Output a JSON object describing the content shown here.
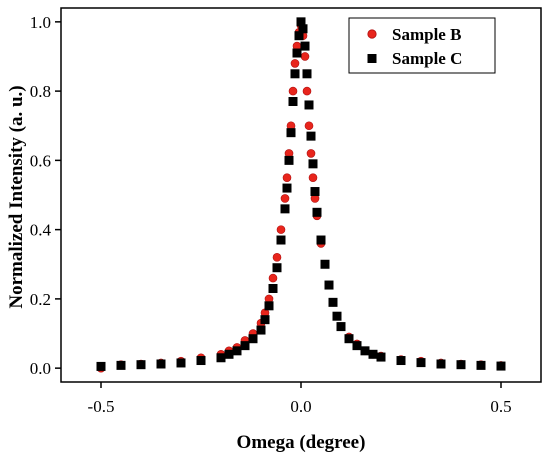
{
  "chart_data": {
    "type": "scatter",
    "xlabel": "Omega (degree)",
    "ylabel": "Normalized Intensity (a. u.)",
    "xlim": [
      -0.6,
      0.6
    ],
    "ylim": [
      -0.04,
      1.04
    ],
    "xticks": [
      "-0.5",
      "0.0",
      "0.5"
    ],
    "xtick_values": [
      -0.5,
      0.0,
      0.5
    ],
    "yticks": [
      "0.0",
      "0.2",
      "0.4",
      "0.6",
      "0.8",
      "1.0"
    ],
    "ytick_values": [
      0.0,
      0.2,
      0.4,
      0.6,
      0.8,
      1.0
    ],
    "legend_position": "top-right",
    "series": [
      {
        "name": "Sample B",
        "marker": "circle",
        "color": "#e8251c",
        "x": [
          -0.5,
          -0.45,
          -0.4,
          -0.35,
          -0.3,
          -0.25,
          -0.2,
          -0.18,
          -0.16,
          -0.14,
          -0.12,
          -0.1,
          -0.09,
          -0.08,
          -0.07,
          -0.06,
          -0.05,
          -0.04,
          -0.035,
          -0.03,
          -0.025,
          -0.02,
          -0.015,
          -0.01,
          -0.005,
          0.0,
          0.005,
          0.01,
          0.015,
          0.02,
          0.025,
          0.03,
          0.035,
          0.04,
          0.05,
          0.06,
          0.07,
          0.08,
          0.09,
          0.1,
          0.12,
          0.14,
          0.16,
          0.18,
          0.2,
          0.25,
          0.3,
          0.35,
          0.4,
          0.45,
          0.5
        ],
        "y": [
          0.0,
          0.01,
          0.012,
          0.015,
          0.02,
          0.03,
          0.04,
          0.05,
          0.06,
          0.08,
          0.1,
          0.13,
          0.16,
          0.2,
          0.26,
          0.32,
          0.4,
          0.49,
          0.55,
          0.62,
          0.7,
          0.8,
          0.88,
          0.93,
          0.97,
          0.99,
          0.96,
          0.9,
          0.8,
          0.7,
          0.62,
          0.55,
          0.49,
          0.44,
          0.36,
          0.3,
          0.24,
          0.19,
          0.15,
          0.12,
          0.09,
          0.07,
          0.05,
          0.04,
          0.035,
          0.025,
          0.02,
          0.015,
          0.012,
          0.01,
          0.008
        ]
      },
      {
        "name": "Sample C",
        "marker": "square",
        "color": "#000000",
        "x": [
          -0.5,
          -0.45,
          -0.4,
          -0.35,
          -0.3,
          -0.25,
          -0.2,
          -0.18,
          -0.16,
          -0.14,
          -0.12,
          -0.1,
          -0.09,
          -0.08,
          -0.07,
          -0.06,
          -0.05,
          -0.04,
          -0.035,
          -0.03,
          -0.025,
          -0.02,
          -0.015,
          -0.01,
          -0.005,
          0.0,
          0.005,
          0.01,
          0.015,
          0.02,
          0.025,
          0.03,
          0.035,
          0.04,
          0.05,
          0.06,
          0.07,
          0.08,
          0.09,
          0.1,
          0.12,
          0.14,
          0.16,
          0.18,
          0.2,
          0.25,
          0.3,
          0.35,
          0.4,
          0.45,
          0.5
        ],
        "y": [
          0.005,
          0.008,
          0.01,
          0.012,
          0.015,
          0.022,
          0.03,
          0.04,
          0.05,
          0.065,
          0.085,
          0.11,
          0.14,
          0.18,
          0.23,
          0.29,
          0.37,
          0.46,
          0.52,
          0.6,
          0.68,
          0.77,
          0.85,
          0.91,
          0.96,
          1.0,
          0.98,
          0.93,
          0.85,
          0.76,
          0.67,
          0.59,
          0.51,
          0.45,
          0.37,
          0.3,
          0.24,
          0.19,
          0.15,
          0.12,
          0.085,
          0.065,
          0.05,
          0.04,
          0.032,
          0.022,
          0.016,
          0.012,
          0.01,
          0.008,
          0.006
        ]
      }
    ]
  }
}
